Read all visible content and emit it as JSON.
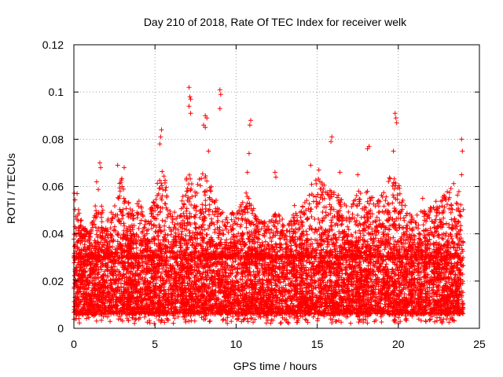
{
  "chart_data": {
    "type": "scatter",
    "title": "Day 210 of 2018, Rate Of TEC Index for receiver welk",
    "xlabel": "GPS time / hours",
    "ylabel": "ROTI / TECUs",
    "xlim": [
      0,
      25
    ],
    "ylim": [
      0,
      0.12
    ],
    "x_ticks": [
      0,
      5,
      10,
      15,
      20,
      25
    ],
    "x_tick_labels": [
      "0",
      "5",
      "10",
      "15",
      "20",
      "25"
    ],
    "y_ticks": [
      0,
      0.02,
      0.04,
      0.06,
      0.08,
      0.1,
      0.12
    ],
    "y_tick_labels": [
      "0",
      "0.02",
      "0.04",
      "0.06",
      "0.08",
      "0.1",
      "0.12"
    ],
    "grid": true,
    "marker": "plus",
    "series_color": "#ff0000",
    "x_range": [
      0,
      24
    ],
    "bulk_range": [
      0.006,
      0.03
    ],
    "highlight_points": [
      {
        "x": 7.1,
        "y": 0.102
      },
      {
        "x": 7.15,
        "y": 0.098
      },
      {
        "x": 7.2,
        "y": 0.097
      },
      {
        "x": 7.1,
        "y": 0.094
      },
      {
        "x": 7.2,
        "y": 0.091
      },
      {
        "x": 9.0,
        "y": 0.101
      },
      {
        "x": 9.05,
        "y": 0.099
      },
      {
        "x": 9.0,
        "y": 0.093
      },
      {
        "x": 8.1,
        "y": 0.09
      },
      {
        "x": 8.2,
        "y": 0.089
      },
      {
        "x": 8.0,
        "y": 0.086
      },
      {
        "x": 8.1,
        "y": 0.085
      },
      {
        "x": 10.9,
        "y": 0.088
      },
      {
        "x": 10.85,
        "y": 0.086
      },
      {
        "x": 10.8,
        "y": 0.074
      },
      {
        "x": 5.4,
        "y": 0.084
      },
      {
        "x": 5.35,
        "y": 0.081
      },
      {
        "x": 5.3,
        "y": 0.078
      },
      {
        "x": 15.9,
        "y": 0.081
      },
      {
        "x": 15.85,
        "y": 0.079
      },
      {
        "x": 19.8,
        "y": 0.091
      },
      {
        "x": 19.85,
        "y": 0.089
      },
      {
        "x": 19.9,
        "y": 0.087
      },
      {
        "x": 19.7,
        "y": 0.075
      },
      {
        "x": 18.2,
        "y": 0.077
      },
      {
        "x": 18.1,
        "y": 0.076
      },
      {
        "x": 23.9,
        "y": 0.08
      },
      {
        "x": 23.95,
        "y": 0.075
      },
      {
        "x": 23.9,
        "y": 0.065
      },
      {
        "x": 8.3,
        "y": 0.075
      },
      {
        "x": 1.6,
        "y": 0.07
      },
      {
        "x": 1.65,
        "y": 0.068
      },
      {
        "x": 2.7,
        "y": 0.069
      },
      {
        "x": 3.1,
        "y": 0.068
      },
      {
        "x": 12.4,
        "y": 0.066
      },
      {
        "x": 12.45,
        "y": 0.064
      },
      {
        "x": 14.6,
        "y": 0.069
      },
      {
        "x": 15.1,
        "y": 0.067
      },
      {
        "x": 16.4,
        "y": 0.066
      },
      {
        "x": 17.5,
        "y": 0.065
      },
      {
        "x": 0.2,
        "y": 0.057
      },
      {
        "x": 1.4,
        "y": 0.062
      },
      {
        "x": 10.7,
        "y": 0.066
      },
      {
        "x": 13.6,
        "y": 0.052
      },
      {
        "x": 21.5,
        "y": 0.055
      }
    ],
    "density_profile": [
      {
        "x": 0.0,
        "hi": 0.058
      },
      {
        "x": 0.5,
        "hi": 0.045
      },
      {
        "x": 1.0,
        "hi": 0.04
      },
      {
        "x": 1.5,
        "hi": 0.06
      },
      {
        "x": 2.0,
        "hi": 0.044
      },
      {
        "x": 2.5,
        "hi": 0.055
      },
      {
        "x": 3.0,
        "hi": 0.065
      },
      {
        "x": 3.5,
        "hi": 0.05
      },
      {
        "x": 4.0,
        "hi": 0.055
      },
      {
        "x": 4.5,
        "hi": 0.045
      },
      {
        "x": 5.0,
        "hi": 0.058
      },
      {
        "x": 5.5,
        "hi": 0.07
      },
      {
        "x": 6.0,
        "hi": 0.05
      },
      {
        "x": 6.5,
        "hi": 0.048
      },
      {
        "x": 7.0,
        "hi": 0.068
      },
      {
        "x": 7.5,
        "hi": 0.06
      },
      {
        "x": 8.0,
        "hi": 0.068
      },
      {
        "x": 8.5,
        "hi": 0.06
      },
      {
        "x": 9.0,
        "hi": 0.05
      },
      {
        "x": 9.5,
        "hi": 0.048
      },
      {
        "x": 10.0,
        "hi": 0.05
      },
      {
        "x": 10.5,
        "hi": 0.06
      },
      {
        "x": 11.0,
        "hi": 0.052
      },
      {
        "x": 11.5,
        "hi": 0.045
      },
      {
        "x": 12.0,
        "hi": 0.046
      },
      {
        "x": 12.5,
        "hi": 0.05
      },
      {
        "x": 13.0,
        "hi": 0.045
      },
      {
        "x": 13.5,
        "hi": 0.048
      },
      {
        "x": 14.0,
        "hi": 0.05
      },
      {
        "x": 14.5,
        "hi": 0.06
      },
      {
        "x": 15.0,
        "hi": 0.065
      },
      {
        "x": 15.5,
        "hi": 0.06
      },
      {
        "x": 16.0,
        "hi": 0.062
      },
      {
        "x": 16.5,
        "hi": 0.055
      },
      {
        "x": 17.0,
        "hi": 0.05
      },
      {
        "x": 17.5,
        "hi": 0.058
      },
      {
        "x": 18.0,
        "hi": 0.06
      },
      {
        "x": 18.5,
        "hi": 0.055
      },
      {
        "x": 19.0,
        "hi": 0.058
      },
      {
        "x": 19.5,
        "hi": 0.065
      },
      {
        "x": 20.0,
        "hi": 0.062
      },
      {
        "x": 20.5,
        "hi": 0.05
      },
      {
        "x": 21.0,
        "hi": 0.048
      },
      {
        "x": 21.5,
        "hi": 0.05
      },
      {
        "x": 22.0,
        "hi": 0.052
      },
      {
        "x": 22.5,
        "hi": 0.055
      },
      {
        "x": 23.0,
        "hi": 0.058
      },
      {
        "x": 23.5,
        "hi": 0.062
      },
      {
        "x": 24.0,
        "hi": 0.055
      }
    ]
  }
}
